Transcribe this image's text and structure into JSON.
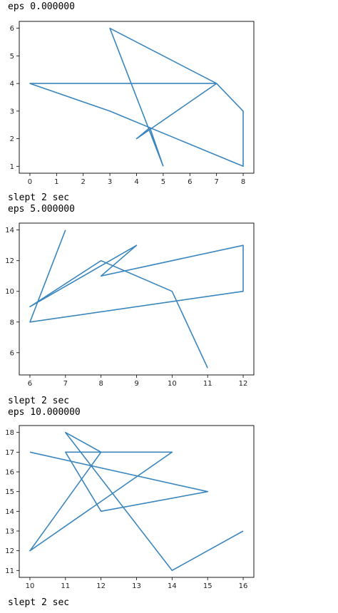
{
  "outputs": [
    {
      "eps_line": "eps 0.000000",
      "slept_line": "slept 2 sec"
    },
    {
      "eps_line": "eps 5.000000",
      "slept_line": "slept 2 sec"
    },
    {
      "eps_line": "eps 10.000000",
      "slept_line": "slept 2 sec"
    }
  ],
  "chart_data": [
    {
      "type": "line",
      "title": "",
      "xlabel": "",
      "ylabel": "",
      "xlim": [
        -0.4,
        8.4
      ],
      "ylim": [
        0.75,
        6.25
      ],
      "xticks": [
        "0",
        "1",
        "2",
        "3",
        "4",
        "5",
        "6",
        "7",
        "8"
      ],
      "yticks": [
        "1",
        "2",
        "3",
        "4",
        "5",
        "6"
      ],
      "grid": false,
      "line_color": "#3b86be",
      "series": [
        {
          "x": [
            5,
            3,
            7,
            0,
            3,
            8,
            8,
            7,
            4,
            4.5,
            5
          ],
          "y": [
            1,
            6,
            4,
            4,
            3,
            1,
            3,
            4,
            2,
            2.4,
            1
          ]
        }
      ]
    },
    {
      "type": "line",
      "title": "",
      "xlabel": "",
      "ylabel": "",
      "xlim": [
        5.7,
        12.3
      ],
      "ylim": [
        4.55,
        14.45
      ],
      "xticks": [
        "6",
        "7",
        "8",
        "9",
        "10",
        "11",
        "12"
      ],
      "yticks": [
        "6",
        "8",
        "10",
        "12",
        "14"
      ],
      "grid": false,
      "line_color": "#3b86be",
      "series": [
        {
          "x": [
            7,
            6,
            12,
            12,
            8,
            9,
            6,
            8,
            10,
            11
          ],
          "y": [
            14,
            8,
            10,
            13,
            11,
            13,
            9,
            12,
            10,
            5
          ]
        }
      ]
    },
    {
      "type": "line",
      "title": "",
      "xlabel": "",
      "ylabel": "",
      "xlim": [
        9.7,
        16.3
      ],
      "ylim": [
        10.65,
        18.35
      ],
      "xticks": [
        "10",
        "11",
        "12",
        "13",
        "14",
        "15",
        "16"
      ],
      "yticks": [
        "11",
        "12",
        "13",
        "14",
        "15",
        "16",
        "17",
        "18"
      ],
      "grid": false,
      "line_color": "#3b86be",
      "series": [
        {
          "x": [
            16,
            14,
            11,
            12,
            10,
            14,
            11,
            12,
            15,
            10
          ],
          "y": [
            13,
            11,
            18,
            17,
            12,
            17,
            17,
            14,
            15,
            17
          ]
        }
      ]
    }
  ]
}
